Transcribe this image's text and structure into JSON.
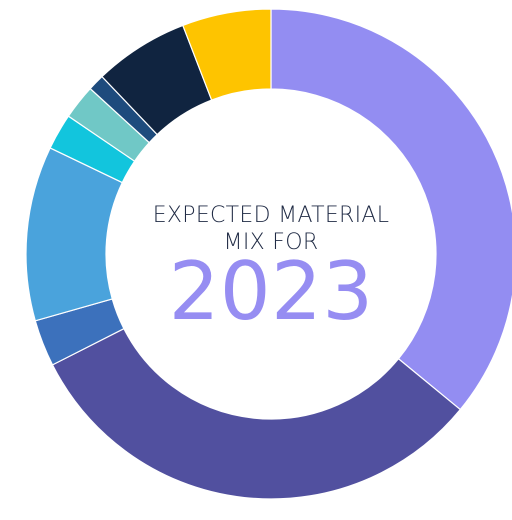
{
  "chart_data": {
    "type": "pie",
    "title_lines": [
      "EXPECTED MATERIAL",
      "MIX  FOR"
    ],
    "year": "2023",
    "year_color": "#968df2",
    "slices": [
      {
        "value": 36.2,
        "color": "#938df2"
      },
      {
        "value": 31.8,
        "color": "#51509f"
      },
      {
        "value": 3.1,
        "color": "#3c71bc"
      },
      {
        "value": 11.6,
        "color": "#4aa3dc"
      },
      {
        "value": 2.4,
        "color": "#12c5dd"
      },
      {
        "value": 2.3,
        "color": "#70c8c6"
      },
      {
        "value": 1.1,
        "color": "#1e4b7d"
      },
      {
        "value": 6.3,
        "color": "#102440"
      },
      {
        "value": 5.9,
        "color": "#fec400"
      }
    ]
  }
}
